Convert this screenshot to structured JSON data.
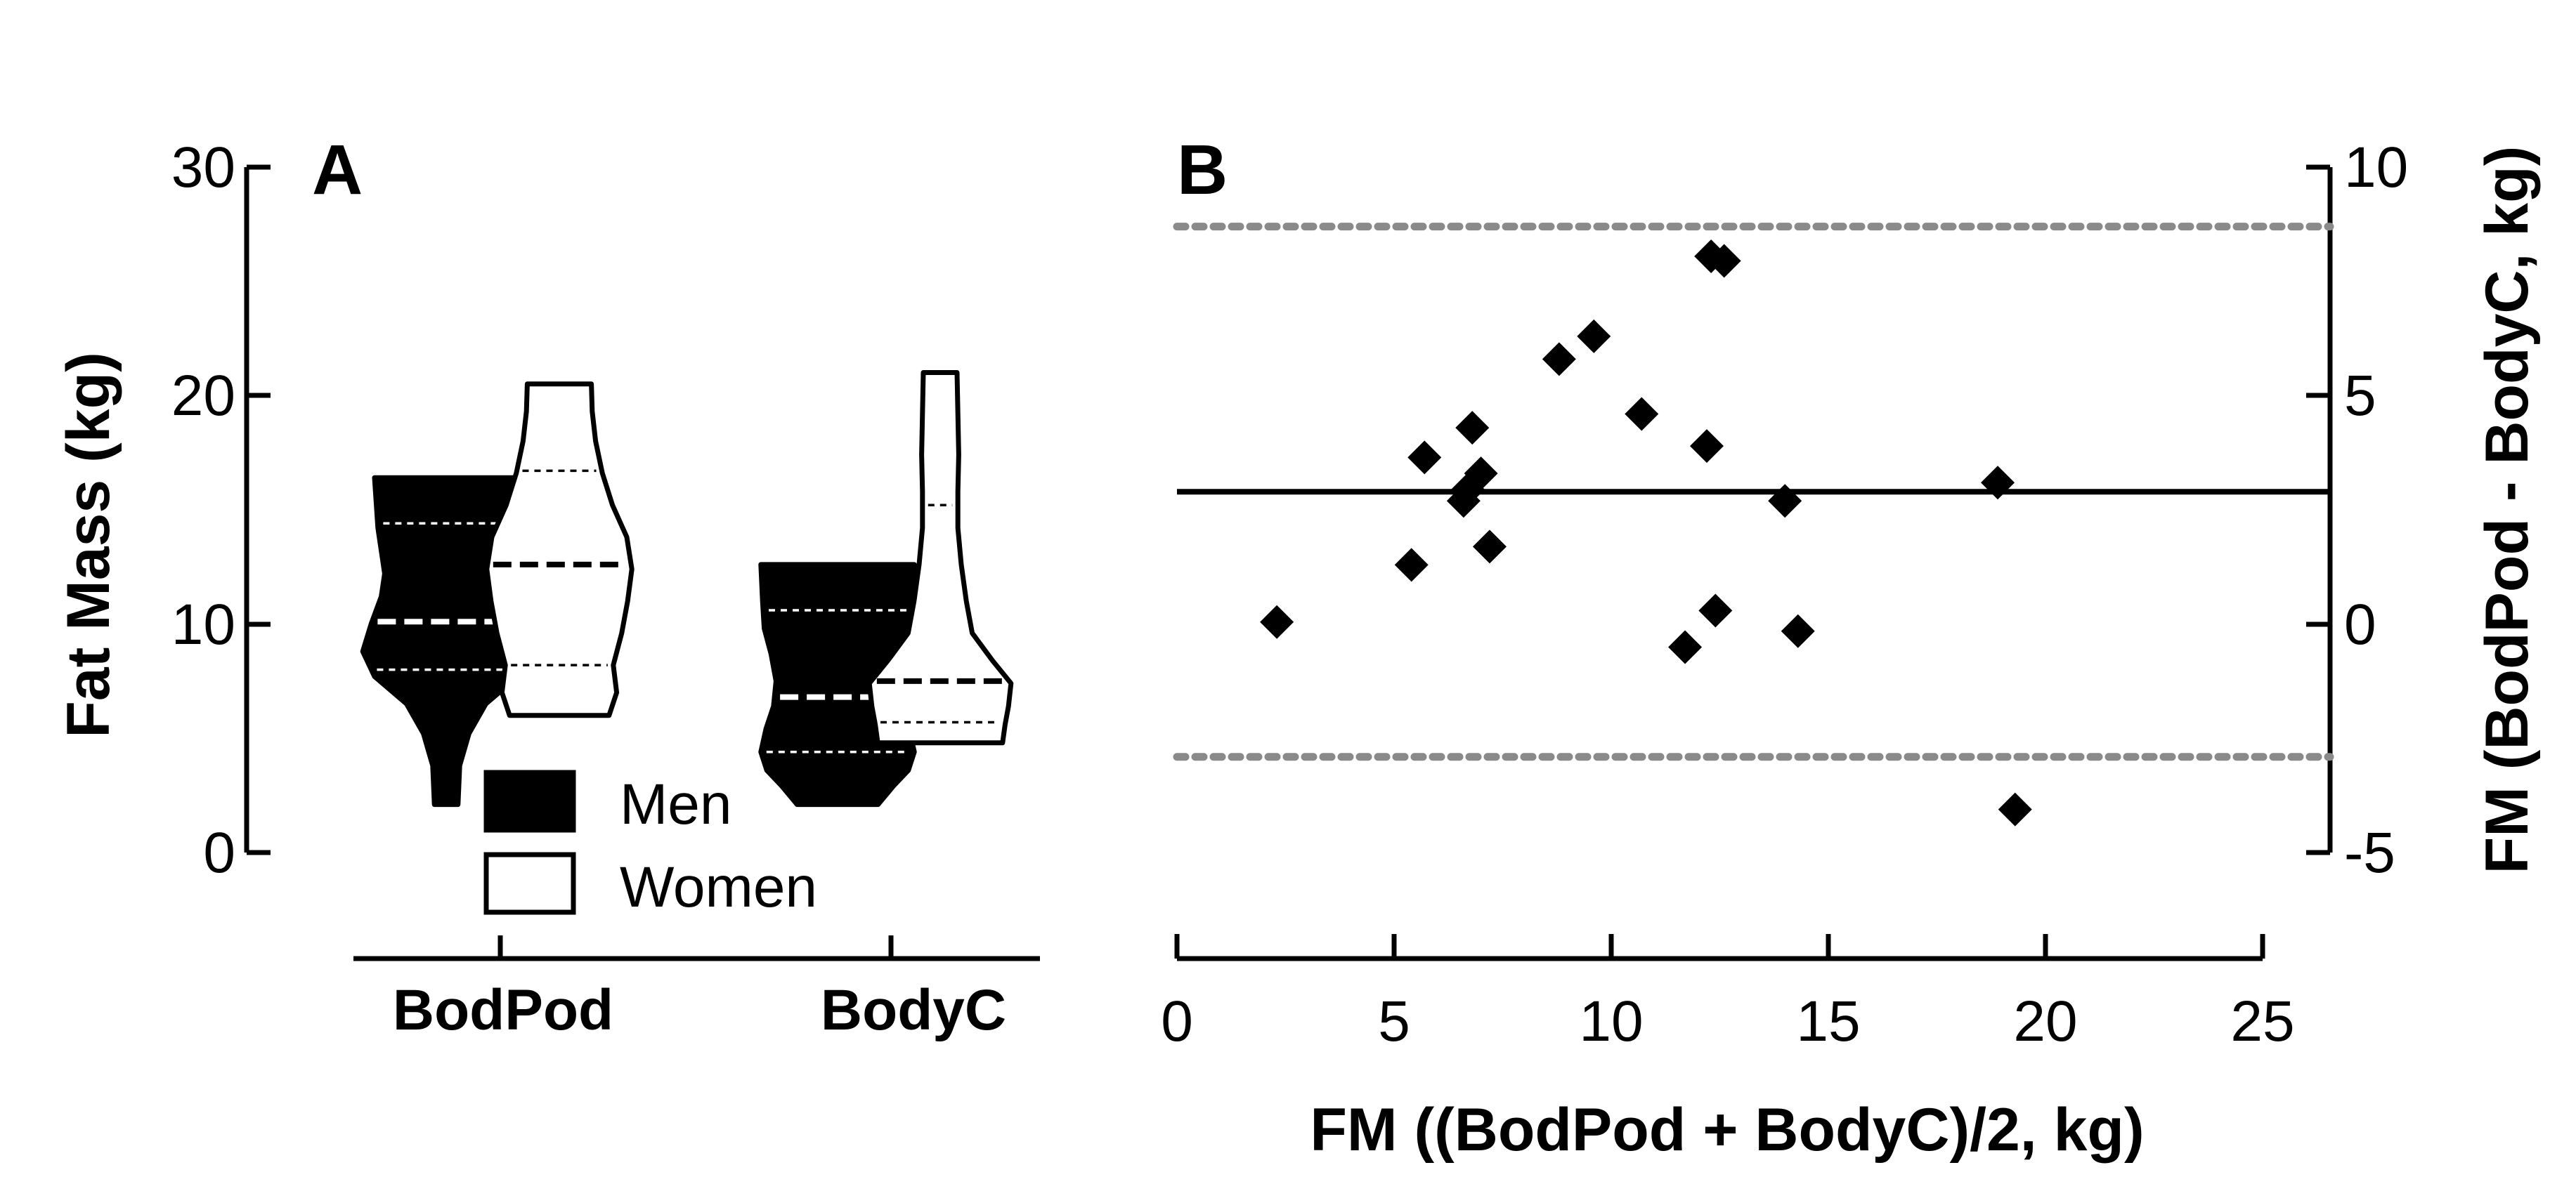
{
  "chart_data": [
    {
      "panel": "A",
      "type": "violin",
      "ylabel": "Fat Mass (kg)",
      "ylim": [
        0,
        30
      ],
      "yticks": [
        0,
        10,
        20,
        30
      ],
      "categories": [
        "BodPod",
        "BodyC"
      ],
      "series": [
        {
          "name": "Men",
          "fill": "#000000",
          "stroke": "#000000",
          "quartile_color": "#ffffff",
          "groups": [
            {
              "category": "BodPod",
              "profile": [
                [
                  2.1,
                  0.7
                ],
                [
                  3.8,
                  0.8
                ],
                [
                  5.2,
                  1.35
                ],
                [
                  6.5,
                  2.35
                ],
                [
                  7.7,
                  4.25
                ],
                [
                  8.8,
                  4.95
                ],
                [
                  10.0,
                  4.45
                ],
                [
                  11.2,
                  3.85
                ],
                [
                  12.2,
                  3.65
                ],
                [
                  13.2,
                  3.85
                ],
                [
                  14.2,
                  4.05
                ],
                [
                  15.3,
                  4.15
                ],
                [
                  16.4,
                  4.25
                ]
              ],
              "median": 10.1,
              "q1": 8.0,
              "q3": 14.4
            },
            {
              "category": "BodyC",
              "profile": [
                [
                  2.1,
                  2.4
                ],
                [
                  2.9,
                  3.3
                ],
                [
                  3.6,
                  4.2
                ],
                [
                  4.4,
                  4.55
                ],
                [
                  5.4,
                  4.25
                ],
                [
                  6.4,
                  3.8
                ],
                [
                  7.5,
                  3.65
                ],
                [
                  8.7,
                  3.95
                ],
                [
                  9.8,
                  4.35
                ],
                [
                  11.0,
                  4.45
                ],
                [
                  12.6,
                  4.55
                ]
              ],
              "median": 6.8,
              "q1": 4.4,
              "q3": 10.6
            }
          ]
        },
        {
          "name": "Women",
          "fill": "#ffffff",
          "stroke": "#000000",
          "quartile_color": "#000000",
          "groups": [
            {
              "category": "BodPod",
              "profile": [
                [
                  6.0,
                  2.95
                ],
                [
                  7.0,
                  3.4
                ],
                [
                  8.2,
                  3.2
                ],
                [
                  9.6,
                  3.7
                ],
                [
                  11.0,
                  4.05
                ],
                [
                  12.4,
                  4.3
                ],
                [
                  13.8,
                  4.0
                ],
                [
                  15.2,
                  3.15
                ],
                [
                  16.6,
                  2.55
                ],
                [
                  18.0,
                  2.15
                ],
                [
                  19.3,
                  1.95
                ],
                [
                  20.5,
                  1.9
                ]
              ],
              "median": 12.6,
              "q1": 8.2,
              "q3": 16.7
            },
            {
              "category": "BodyC",
              "profile": [
                [
                  4.8,
                  3.7
                ],
                [
                  5.6,
                  3.85
                ],
                [
                  6.4,
                  4.05
                ],
                [
                  7.4,
                  4.2
                ],
                [
                  8.4,
                  3.1
                ],
                [
                  9.6,
                  1.9
                ],
                [
                  11.0,
                  1.55
                ],
                [
                  12.6,
                  1.25
                ],
                [
                  14.2,
                  1.05
                ],
                [
                  15.8,
                  1.05
                ],
                [
                  17.4,
                  1.1
                ],
                [
                  19.2,
                  1.05
                ],
                [
                  21.0,
                  1.0
                ]
              ],
              "median": 7.5,
              "q1": 5.7,
              "q3": 15.2
            }
          ]
        }
      ],
      "legend": {
        "placement": "bottom-right",
        "entries": [
          {
            "name": "Men",
            "fill": "#000000"
          },
          {
            "name": "Women",
            "fill": "#ffffff"
          }
        ]
      }
    },
    {
      "panel": "B",
      "type": "scatter",
      "xlabel": "FM ((BodPod + BodyC)/2, kg)",
      "ylabel": "FM (BodPod - BodyC, kg)",
      "xlim": [
        0,
        25
      ],
      "ylim": [
        -5,
        10
      ],
      "xticks": [
        0,
        5,
        10,
        15,
        20,
        25
      ],
      "yticks": [
        -5,
        0,
        5,
        10
      ],
      "points": [
        [
          2.3,
          0.05
        ],
        [
          5.4,
          1.3
        ],
        [
          5.7,
          3.65
        ],
        [
          6.6,
          2.7
        ],
        [
          6.7,
          2.95
        ],
        [
          6.8,
          4.3
        ],
        [
          7.0,
          3.3
        ],
        [
          7.2,
          1.7
        ],
        [
          8.8,
          5.8
        ],
        [
          9.6,
          6.3
        ],
        [
          10.7,
          4.6
        ],
        [
          11.7,
          -0.5
        ],
        [
          12.2,
          3.9
        ],
        [
          12.3,
          8.05
        ],
        [
          12.4,
          0.3
        ],
        [
          12.6,
          7.95
        ],
        [
          14.0,
          2.7
        ],
        [
          14.3,
          -0.15
        ],
        [
          18.9,
          3.1
        ],
        [
          19.3,
          -4.05
        ]
      ],
      "mean_bias": 2.9,
      "upper_loa": 8.7,
      "lower_loa": -2.9,
      "bias_color": "#000000",
      "loa_color": "#8a8a8a",
      "marker_color": "#000000"
    }
  ],
  "panel_labels": {
    "a": "A",
    "b": "B"
  },
  "text": {
    "a_ylabel": "Fat Mass (kg)",
    "a_cat1": "BodPod",
    "a_cat2": "BodyC",
    "a_y0": "0",
    "a_y10": "10",
    "a_y20": "20",
    "a_y30": "30",
    "legend_men": "Men",
    "legend_women": "Women",
    "b_xlabel": "FM ((BodPod + BodyC)/2, kg)",
    "b_ylabel": "FM (BodPod - BodyC, kg)",
    "b_x0": "0",
    "b_x5": "5",
    "b_x10": "10",
    "b_x15": "15",
    "b_x20": "20",
    "b_x25": "25",
    "b_yneg5": "-5",
    "b_y0": "0",
    "b_y5": "5",
    "b_y10": "10"
  }
}
